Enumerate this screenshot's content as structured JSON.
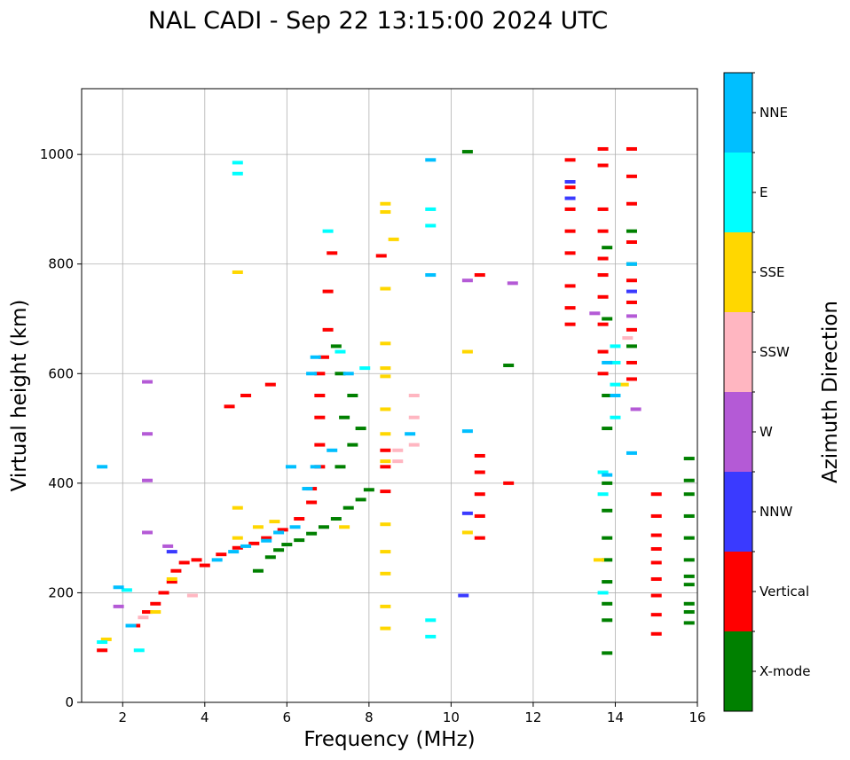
{
  "chart_data": {
    "type": "scatter",
    "title": "NAL CADI - Sep 22 13:15:00 2024 UTC",
    "xlabel": "Frequency (MHz)",
    "ylabel": "Virtual height (km)",
    "xlim": [
      1,
      16
    ],
    "ylim": [
      0,
      1120
    ],
    "xticks": [
      "2",
      "4",
      "6",
      "8",
      "10",
      "12",
      "14",
      "16"
    ],
    "yticks": [
      "0",
      "200",
      "400",
      "600",
      "800",
      "1000"
    ],
    "xtick_values": [
      2,
      4,
      6,
      8,
      10,
      12,
      14,
      16
    ],
    "ytick_values": [
      0,
      200,
      400,
      600,
      800,
      1000
    ],
    "grid": true,
    "colorbar": {
      "title": "Azimuth Direction",
      "categories": [
        {
          "name": "X-mode",
          "color": "#008000"
        },
        {
          "name": "Vertical",
          "color": "#ff0000"
        },
        {
          "name": "NNW",
          "color": "#3a3aff"
        },
        {
          "name": "W",
          "color": "#b45ad6"
        },
        {
          "name": "SSW",
          "color": "#ffb6c1"
        },
        {
          "name": "SSE",
          "color": "#ffd700"
        },
        {
          "name": "E",
          "color": "#00ffff"
        },
        {
          "name": "NNE",
          "color": "#00bfff"
        }
      ]
    },
    "series": [
      {
        "name": "X-mode",
        "points": [
          [
            5.3,
            240
          ],
          [
            5.6,
            265
          ],
          [
            5.8,
            278
          ],
          [
            6.0,
            288
          ],
          [
            6.3,
            296
          ],
          [
            6.6,
            308
          ],
          [
            6.9,
            320
          ],
          [
            7.2,
            335
          ],
          [
            7.5,
            355
          ],
          [
            7.8,
            370
          ],
          [
            8.0,
            388
          ],
          [
            7.3,
            430
          ],
          [
            7.6,
            470
          ],
          [
            7.8,
            500
          ],
          [
            7.4,
            520
          ],
          [
            7.6,
            560
          ],
          [
            7.3,
            600
          ],
          [
            7.2,
            650
          ],
          [
            10.4,
            1005
          ],
          [
            11.4,
            615
          ],
          [
            13.8,
            90
          ],
          [
            13.8,
            150
          ],
          [
            13.8,
            180
          ],
          [
            13.8,
            220
          ],
          [
            13.8,
            260
          ],
          [
            13.8,
            300
          ],
          [
            13.8,
            350
          ],
          [
            13.8,
            400
          ],
          [
            13.8,
            500
          ],
          [
            13.8,
            560
          ],
          [
            13.8,
            700
          ],
          [
            13.8,
            830
          ],
          [
            14.4,
            860
          ],
          [
            14.4,
            800
          ],
          [
            14.4,
            650
          ],
          [
            15.8,
            145
          ],
          [
            15.8,
            165
          ],
          [
            15.8,
            180
          ],
          [
            15.8,
            215
          ],
          [
            15.8,
            230
          ],
          [
            15.8,
            260
          ],
          [
            15.8,
            300
          ],
          [
            15.8,
            340
          ],
          [
            15.8,
            380
          ],
          [
            15.8,
            405
          ],
          [
            15.8,
            445
          ]
        ]
      },
      {
        "name": "Vertical",
        "points": [
          [
            1.5,
            95
          ],
          [
            2.3,
            140
          ],
          [
            2.6,
            165
          ],
          [
            2.8,
            180
          ],
          [
            3.0,
            200
          ],
          [
            3.2,
            220
          ],
          [
            3.3,
            240
          ],
          [
            3.5,
            255
          ],
          [
            3.8,
            260
          ],
          [
            4.0,
            250
          ],
          [
            4.4,
            270
          ],
          [
            4.8,
            282
          ],
          [
            5.2,
            290
          ],
          [
            5.5,
            300
          ],
          [
            5.9,
            315
          ],
          [
            6.3,
            335
          ],
          [
            6.6,
            365
          ],
          [
            6.6,
            390
          ],
          [
            6.8,
            430
          ],
          [
            6.8,
            470
          ],
          [
            6.8,
            520
          ],
          [
            6.8,
            560
          ],
          [
            6.8,
            600
          ],
          [
            6.9,
            630
          ],
          [
            7.0,
            680
          ],
          [
            7.0,
            750
          ],
          [
            7.1,
            820
          ],
          [
            5.6,
            580
          ],
          [
            5.0,
            560
          ],
          [
            4.6,
            540
          ],
          [
            8.3,
            815
          ],
          [
            8.4,
            385
          ],
          [
            8.4,
            430
          ],
          [
            8.4,
            460
          ],
          [
            10.7,
            300
          ],
          [
            10.7,
            340
          ],
          [
            10.7,
            380
          ],
          [
            10.7,
            420
          ],
          [
            10.7,
            450
          ],
          [
            10.7,
            780
          ],
          [
            11.4,
            400
          ],
          [
            12.9,
            690
          ],
          [
            12.9,
            720
          ],
          [
            12.9,
            760
          ],
          [
            12.9,
            820
          ],
          [
            12.9,
            860
          ],
          [
            12.9,
            900
          ],
          [
            12.9,
            940
          ],
          [
            12.9,
            990
          ],
          [
            13.7,
            1010
          ],
          [
            13.7,
            980
          ],
          [
            13.7,
            900
          ],
          [
            13.7,
            860
          ],
          [
            13.7,
            810
          ],
          [
            13.7,
            780
          ],
          [
            13.7,
            740
          ],
          [
            13.7,
            690
          ],
          [
            13.7,
            640
          ],
          [
            13.7,
            600
          ],
          [
            14.4,
            1010
          ],
          [
            14.4,
            960
          ],
          [
            14.4,
            910
          ],
          [
            14.4,
            840
          ],
          [
            14.4,
            770
          ],
          [
            14.4,
            730
          ],
          [
            14.4,
            680
          ],
          [
            14.4,
            620
          ],
          [
            14.4,
            590
          ],
          [
            15.0,
            125
          ],
          [
            15.0,
            160
          ],
          [
            15.0,
            195
          ],
          [
            15.0,
            225
          ],
          [
            15.0,
            255
          ],
          [
            15.0,
            280
          ],
          [
            15.0,
            305
          ],
          [
            15.0,
            340
          ],
          [
            15.0,
            380
          ]
        ]
      },
      {
        "name": "NNW",
        "points": [
          [
            3.2,
            275
          ],
          [
            10.3,
            195
          ],
          [
            10.4,
            345
          ],
          [
            12.9,
            950
          ],
          [
            12.9,
            920
          ],
          [
            14.4,
            750
          ]
        ]
      },
      {
        "name": "W",
        "points": [
          [
            1.9,
            175
          ],
          [
            2.6,
            310
          ],
          [
            2.6,
            405
          ],
          [
            2.6,
            585
          ],
          [
            2.6,
            490
          ],
          [
            3.1,
            285
          ],
          [
            11.5,
            765
          ],
          [
            10.4,
            770
          ],
          [
            13.5,
            710
          ],
          [
            14.4,
            705
          ],
          [
            14.5,
            535
          ]
        ]
      },
      {
        "name": "SSW",
        "points": [
          [
            2.5,
            155
          ],
          [
            3.7,
            195
          ],
          [
            8.7,
            440
          ],
          [
            8.7,
            460
          ],
          [
            9.1,
            470
          ],
          [
            9.1,
            520
          ],
          [
            9.1,
            560
          ],
          [
            14.3,
            665
          ]
        ]
      },
      {
        "name": "SSE",
        "points": [
          [
            1.6,
            115
          ],
          [
            2.8,
            165
          ],
          [
            3.2,
            225
          ],
          [
            4.8,
            300
          ],
          [
            4.8,
            355
          ],
          [
            4.8,
            785
          ],
          [
            5.3,
            320
          ],
          [
            5.7,
            330
          ],
          [
            7.4,
            320
          ],
          [
            8.4,
            135
          ],
          [
            8.4,
            175
          ],
          [
            8.4,
            235
          ],
          [
            8.4,
            275
          ],
          [
            8.4,
            325
          ],
          [
            8.4,
            440
          ],
          [
            8.4,
            490
          ],
          [
            8.4,
            535
          ],
          [
            8.4,
            595
          ],
          [
            8.4,
            610
          ],
          [
            8.4,
            655
          ],
          [
            8.4,
            755
          ],
          [
            8.4,
            895
          ],
          [
            8.4,
            910
          ],
          [
            8.6,
            845
          ],
          [
            10.4,
            310
          ],
          [
            10.4,
            640
          ],
          [
            13.6,
            260
          ],
          [
            14.2,
            580
          ]
        ]
      },
      {
        "name": "E",
        "points": [
          [
            1.5,
            110
          ],
          [
            2.1,
            205
          ],
          [
            2.4,
            95
          ],
          [
            4.8,
            965
          ],
          [
            4.8,
            985
          ],
          [
            7.0,
            860
          ],
          [
            7.3,
            640
          ],
          [
            7.9,
            610
          ],
          [
            9.5,
            120
          ],
          [
            9.5,
            150
          ],
          [
            9.5,
            870
          ],
          [
            9.5,
            900
          ],
          [
            13.7,
            420
          ],
          [
            13.7,
            380
          ],
          [
            13.7,
            200
          ],
          [
            14.0,
            580
          ],
          [
            14.0,
            520
          ],
          [
            14.0,
            620
          ],
          [
            14.0,
            650
          ]
        ]
      },
      {
        "name": "NNE",
        "points": [
          [
            1.5,
            430
          ],
          [
            1.9,
            210
          ],
          [
            2.2,
            140
          ],
          [
            4.3,
            260
          ],
          [
            4.7,
            275
          ],
          [
            5.0,
            285
          ],
          [
            5.5,
            295
          ],
          [
            5.8,
            310
          ],
          [
            6.2,
            320
          ],
          [
            6.5,
            390
          ],
          [
            6.7,
            430
          ],
          [
            6.1,
            430
          ],
          [
            6.6,
            600
          ],
          [
            6.7,
            630
          ],
          [
            7.1,
            460
          ],
          [
            7.5,
            600
          ],
          [
            9.0,
            490
          ],
          [
            9.5,
            990
          ],
          [
            9.5,
            780
          ],
          [
            10.4,
            495
          ],
          [
            13.8,
            415
          ],
          [
            13.8,
            620
          ],
          [
            14.0,
            560
          ],
          [
            14.4,
            455
          ],
          [
            14.4,
            800
          ]
        ]
      }
    ]
  }
}
